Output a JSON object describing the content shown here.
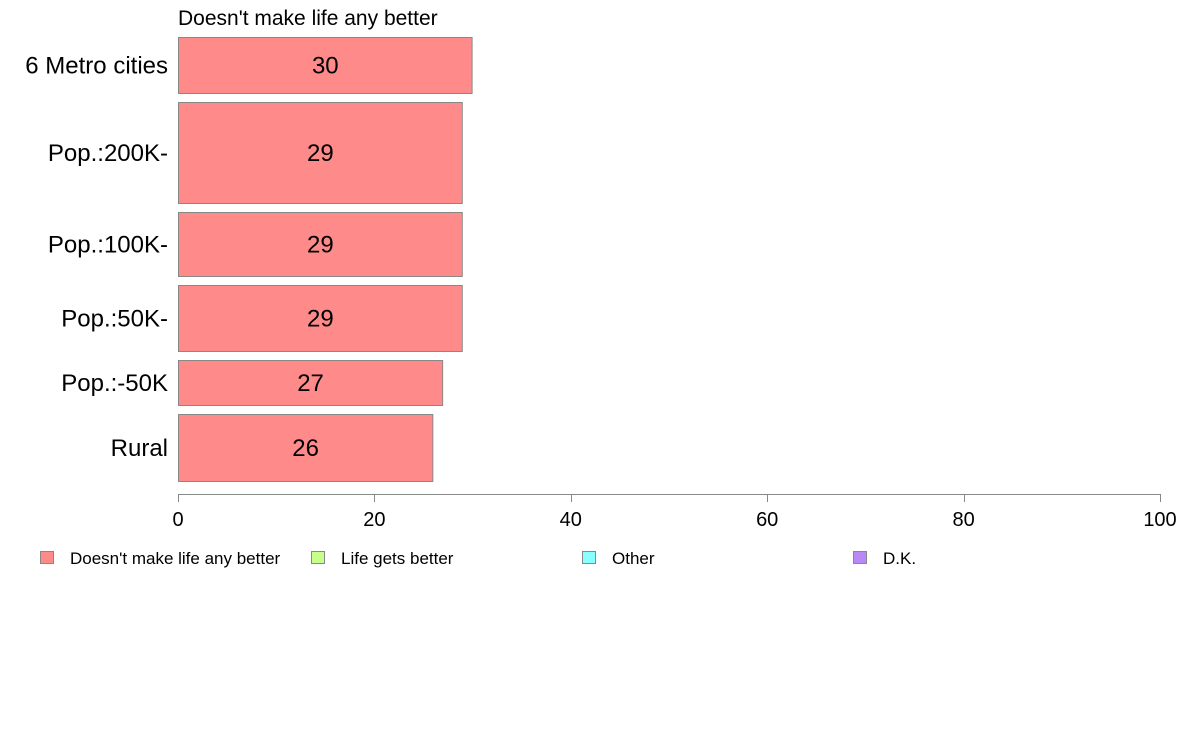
{
  "chart_data": {
    "type": "bar",
    "orientation": "horizontal",
    "title": "Doesn't make life any better",
    "categories": [
      "6 Metro cities",
      "Pop.:200K-",
      "Pop.:100K-",
      "Pop.:50K-",
      "Pop.:-50K",
      "Rural"
    ],
    "series": [
      {
        "name": "Doesn't make life any better",
        "values": [
          30,
          29,
          29,
          29,
          27,
          26
        ],
        "data_labels": [
          "30",
          "29",
          "29",
          "29",
          "27",
          "26"
        ],
        "color": "#FF8A8A"
      }
    ],
    "xlim": [
      0,
      100
    ],
    "x_ticks": [
      0,
      20,
      40,
      60,
      80,
      100
    ],
    "x_tick_labels": [
      "0",
      "20",
      "40",
      "60",
      "80",
      "100"
    ],
    "grid": false,
    "legend": {
      "placement": "bottom",
      "entries": [
        {
          "label": "Doesn't make life any better",
          "color": "#FF8A8A"
        },
        {
          "label": "Life gets better",
          "color": "#C8FF8A"
        },
        {
          "label": "Other",
          "color": "#8AFFFF"
        },
        {
          "label": "D.K.",
          "color": "#B98AF5"
        }
      ]
    },
    "bar_border_color": "#888888",
    "axis_color": "#888888"
  }
}
